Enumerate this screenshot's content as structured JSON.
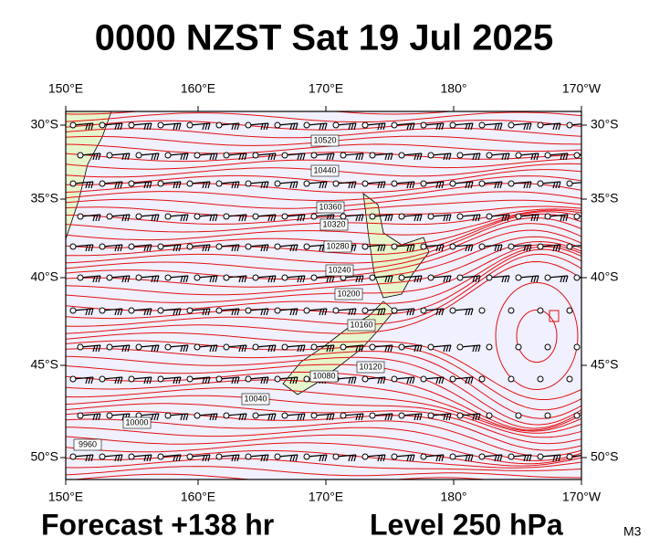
{
  "title": "0000 NZST Sat 19 Jul 2025",
  "lon_labels": [
    "150°E",
    "160°E",
    "170°E",
    "180°",
    "170°W"
  ],
  "lat_labels": [
    "30°S",
    "35°S",
    "40°S",
    "45°S",
    "50°S"
  ],
  "contour_labels": [
    "10520",
    "10440",
    "10360",
    "10320",
    "10280",
    "10240",
    "10200",
    "10160",
    "10120",
    "10080",
    "10040",
    "10000",
    "9960"
  ],
  "footer": {
    "forecast": "Forecast +138 hr",
    "level": "Level 250 hPa",
    "model": "M3"
  }
}
